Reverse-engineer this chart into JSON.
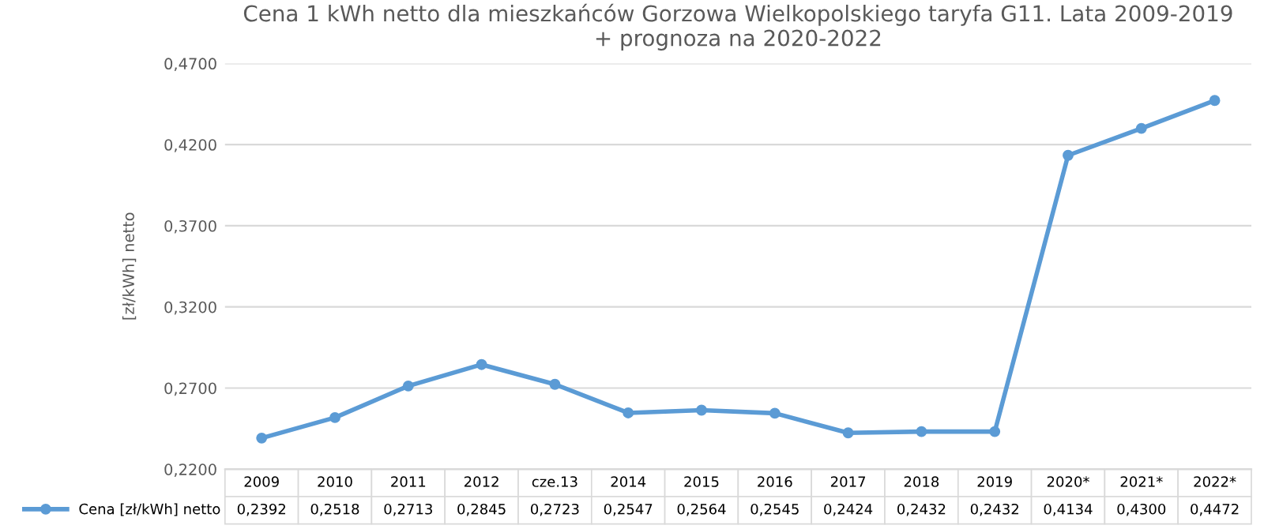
{
  "chart_data": {
    "type": "line",
    "title": "Cena 1 kWh netto dla mieszkańców Gorzowa Wielkopolskiego taryfa G11. Lata 2009-2019\n+ prognoza na 2020-2022",
    "ylabel": "[zł/kWh] netto",
    "categories": [
      "2009",
      "2010",
      "2011",
      "2012",
      "cze.13",
      "2014",
      "2015",
      "2016",
      "2017",
      "2018",
      "2019",
      "2020*",
      "2021*",
      "2022*"
    ],
    "series": [
      {
        "name": "Cena [zł/kWh] netto",
        "color": "#5b9bd5",
        "values": [
          0.2392,
          0.2518,
          0.2713,
          0.2845,
          0.2723,
          0.2547,
          0.2564,
          0.2545,
          0.2424,
          0.2432,
          0.2432,
          0.4134,
          0.43,
          0.4472
        ],
        "value_labels": [
          "0,2392",
          "0,2518",
          "0,2713",
          "0,2845",
          "0,2723",
          "0,2547",
          "0,2564",
          "0,2545",
          "0,2424",
          "0,2432",
          "0,2432",
          "0,4134",
          "0,4300",
          "0,4472"
        ]
      }
    ],
    "ylim": [
      0.22,
      0.47
    ],
    "yticks": [
      {
        "value": 0.22,
        "label": "0,2200"
      },
      {
        "value": 0.27,
        "label": "0,2700"
      },
      {
        "value": 0.32,
        "label": "0,3200"
      },
      {
        "value": 0.37,
        "label": "0,3700"
      },
      {
        "value": 0.42,
        "label": "0,4200"
      },
      {
        "value": 0.47,
        "label": "0,4700"
      }
    ],
    "grid": "y",
    "legend": "bottom left",
    "marker": "circle",
    "line_style": "solid",
    "tick_labels": "y"
  }
}
